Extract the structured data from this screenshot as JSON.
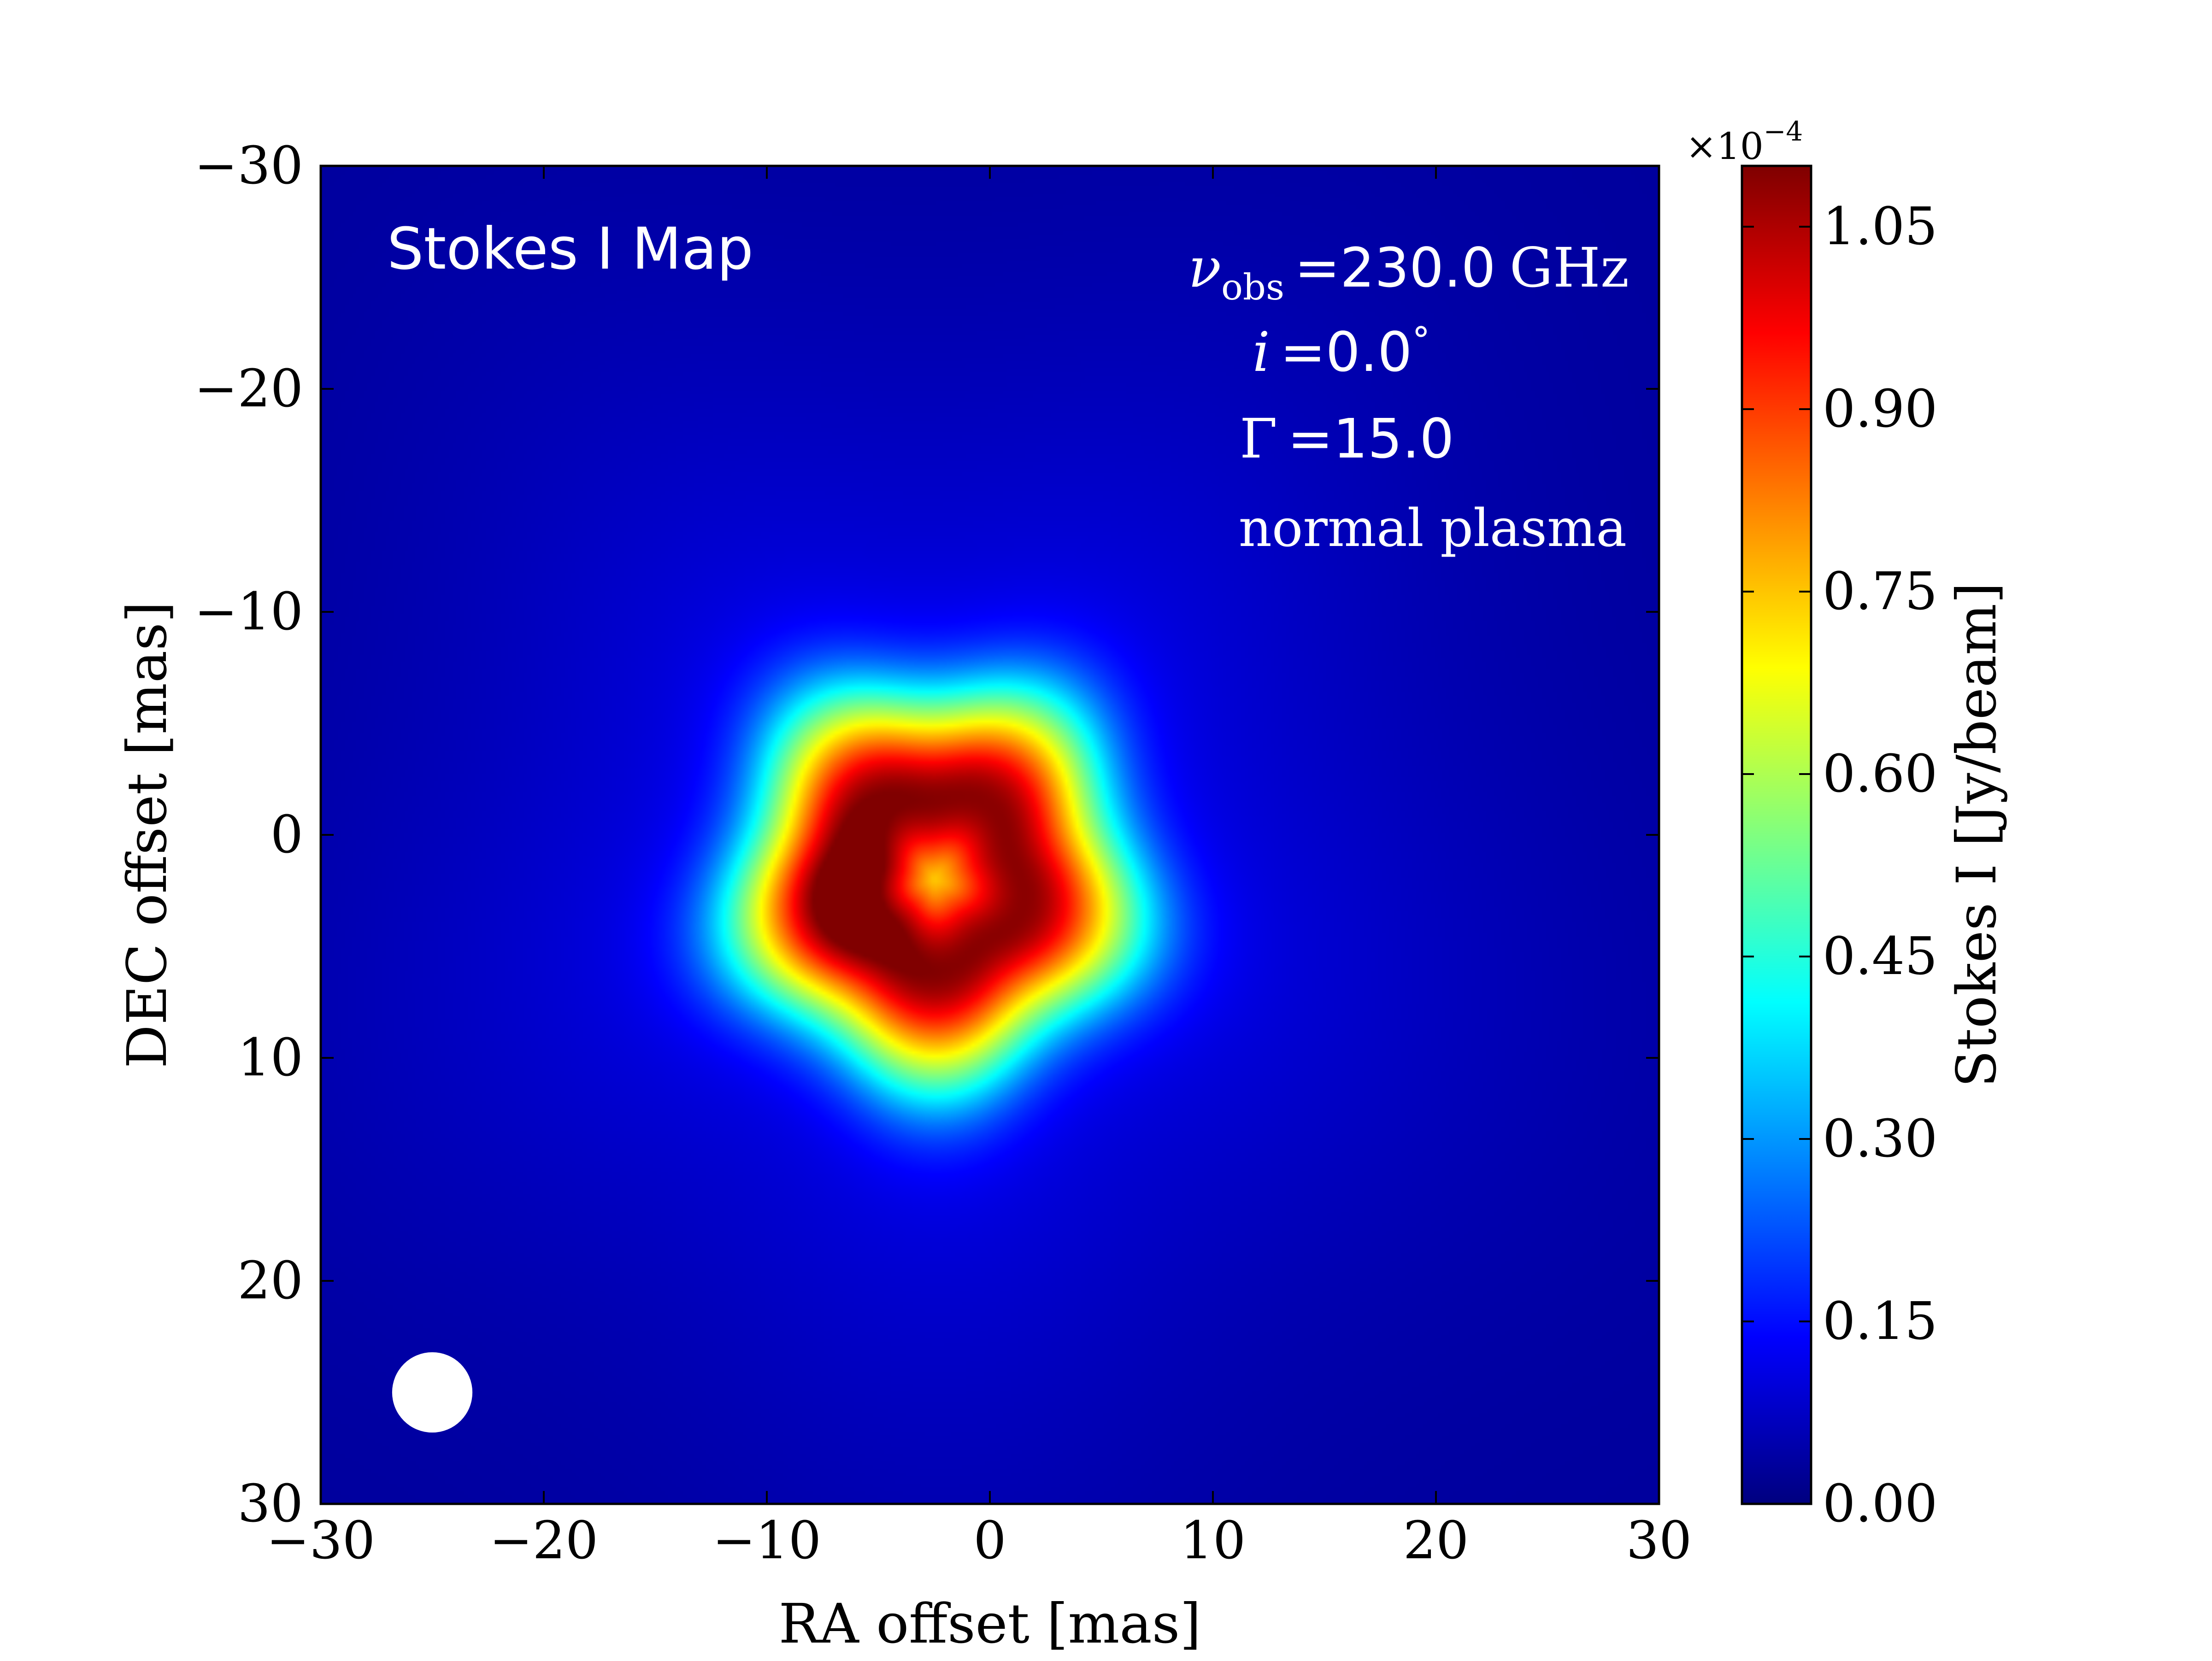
{
  "chart_data": {
    "type": "heatmap",
    "title": "Stokes I Map",
    "xlabel": "RA offset [mas]",
    "ylabel": "DEC offset [mas]",
    "xlim": [
      -30,
      30
    ],
    "ylim": [
      -30,
      30
    ],
    "y_inverted": true,
    "xticks": [
      -30,
      -20,
      -10,
      0,
      10,
      20,
      30
    ],
    "yticks": [
      -30,
      -20,
      -10,
      0,
      10,
      20,
      30
    ],
    "xtick_labels": [
      "−30",
      "−20",
      "−10",
      "0",
      "10",
      "20",
      "30"
    ],
    "ytick_labels": [
      "−30",
      "−20",
      "−10",
      "0",
      "10",
      "20",
      "30"
    ],
    "colormap": "jet",
    "colorbar": {
      "label": "Stokes I [Jy/beam]",
      "multiplier": "×10",
      "exponent": "−4",
      "range": [
        0.0,
        1.1
      ],
      "ticks": [
        0.0,
        0.15,
        0.3,
        0.45,
        0.6,
        0.75,
        0.9,
        1.05
      ],
      "tick_labels": [
        "0.00",
        "0.15",
        "0.30",
        "0.45",
        "0.60",
        "0.75",
        "0.90",
        "1.05"
      ]
    },
    "source_model": {
      "peak_value": 1.09,
      "peak_ra": -6,
      "peak_dec": 2.5,
      "ring_center_ra": -2.5,
      "ring_center_dec": 2,
      "ring_radius": 4,
      "ring_half_width": 3.2,
      "central_value": 0.8,
      "body_radius": 9,
      "halo_radius": 22,
      "halo_value": 0.1,
      "floor_value": 0.03
    },
    "beam": {
      "ra": -25,
      "dec": 25,
      "diameter": 3.6
    },
    "annotations": {
      "nu_symbol": "ν",
      "nu_subscript": "obs",
      "nu_eq": "=",
      "nu_value": "230.0",
      "nu_unit": "GHz",
      "incl_symbol": "i",
      "incl_eq": "=",
      "incl_value": "0.0",
      "incl_unit": "°",
      "gamma_symbol": "Γ",
      "gamma_eq": "=",
      "gamma_value": "15.0",
      "plasma": "normal plasma"
    }
  }
}
